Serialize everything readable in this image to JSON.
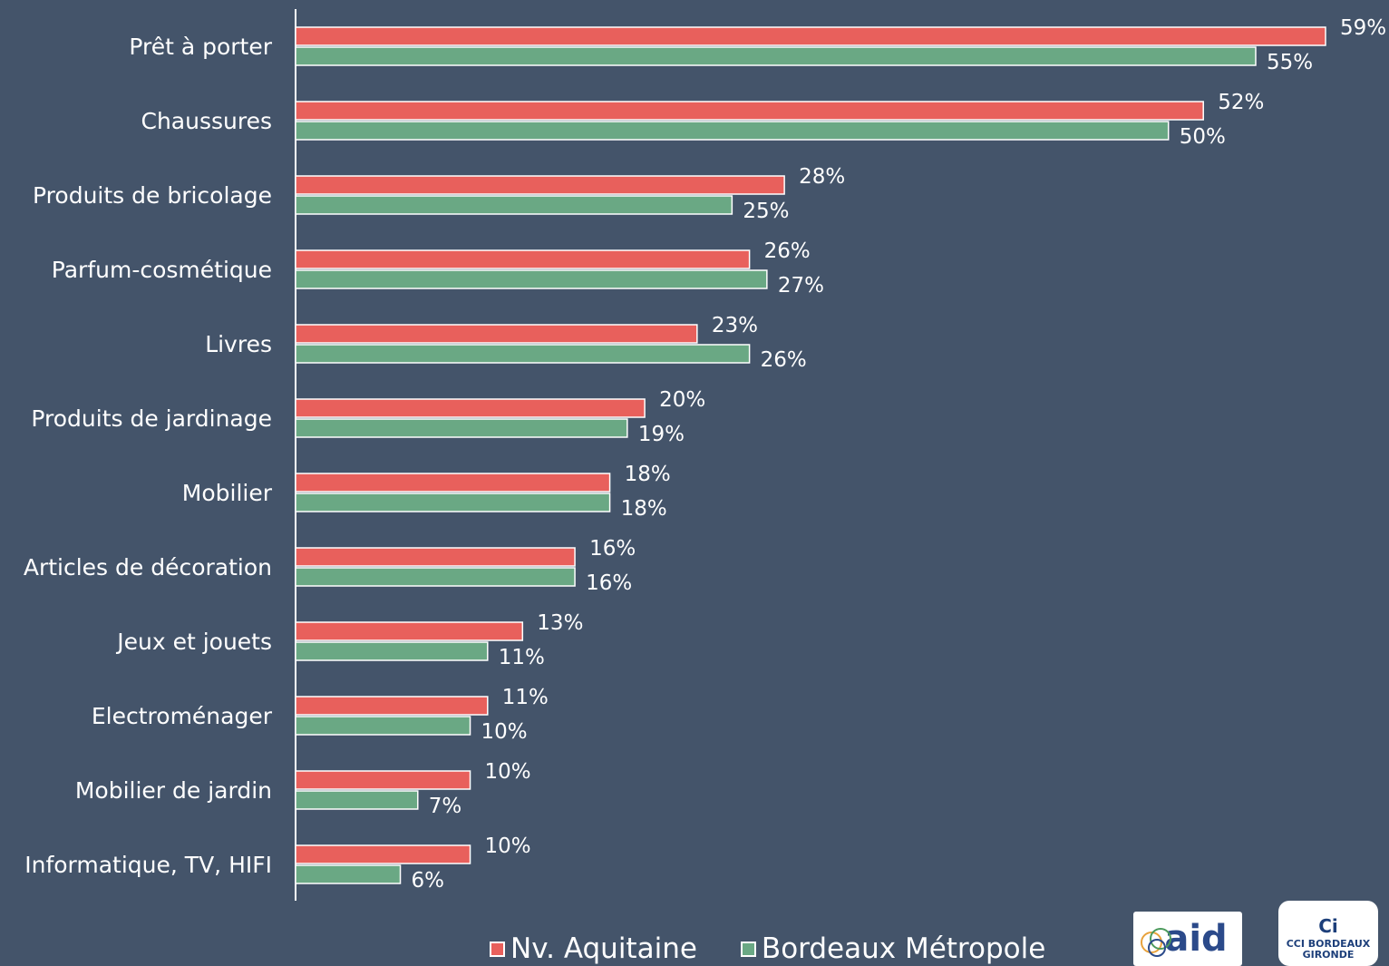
{
  "chart_data": {
    "type": "bar",
    "orientation": "horizontal",
    "categories": [
      "Prêt à porter",
      "Chaussures",
      "Produits de bricolage",
      "Parfum-cosmétique",
      "Livres",
      "Produits de jardinage",
      "Mobilier",
      "Articles de décoration",
      "Jeux et jouets",
      "Electroménager",
      "Mobilier de jardin",
      "Informatique, TV, HIFI"
    ],
    "series": [
      {
        "name": "Nv. Aquitaine",
        "color": "#e8605c",
        "values": [
          59,
          52,
          28,
          26,
          23,
          20,
          18,
          16,
          13,
          11,
          10,
          10
        ]
      },
      {
        "name": "Bordeaux Métropole",
        "color": "#6aa884",
        "values": [
          55,
          50,
          25,
          27,
          26,
          19,
          18,
          16,
          11,
          10,
          7,
          6
        ]
      }
    ],
    "value_suffix": "%",
    "xlim": [
      0,
      59
    ],
    "legend_position": "bottom",
    "grid": false
  },
  "logos": {
    "aid": {
      "text": "aid",
      "color": "#2b4a8a"
    },
    "cci": {
      "mark": "Ci",
      "line1": "CCI BORDEAUX",
      "line2": "GIRONDE",
      "color": "#1d3f7a"
    }
  }
}
